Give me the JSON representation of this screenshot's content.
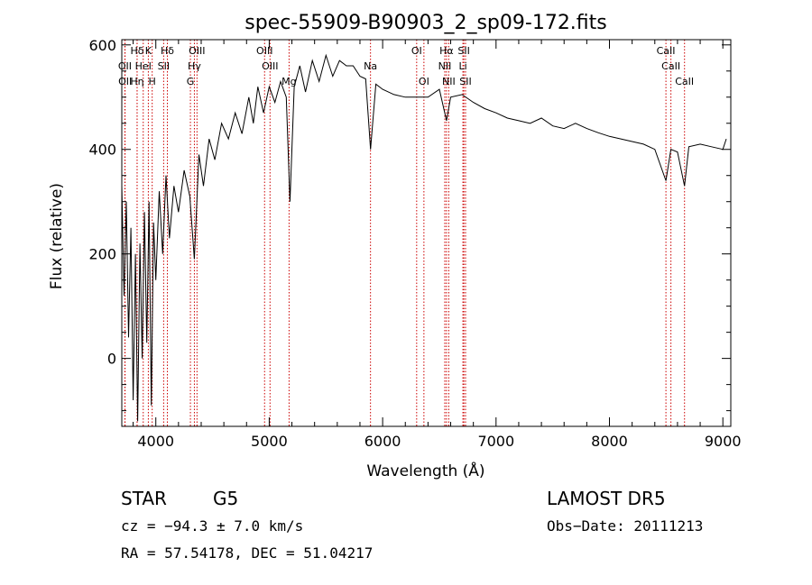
{
  "chart_data": {
    "type": "line",
    "title": "spec-55909-B90903_2_sp09-172.fits",
    "xlabel": "Wavelength (Å)",
    "ylabel": "Flux (relative)",
    "xlim": [
      3700,
      9070
    ],
    "ylim": [
      -130,
      610
    ],
    "xticks": [
      4000,
      5000,
      6000,
      7000,
      8000,
      9000
    ],
    "yticks": [
      0,
      200,
      400,
      600
    ],
    "grid": false,
    "line_color": "#000000",
    "marker_color": "#cc0000",
    "spectrum": {
      "x": [
        3700,
        3720,
        3740,
        3760,
        3780,
        3800,
        3820,
        3840,
        3860,
        3880,
        3900,
        3920,
        3940,
        3960,
        3980,
        4000,
        4030,
        4060,
        4090,
        4120,
        4160,
        4200,
        4250,
        4300,
        4340,
        4380,
        4420,
        4470,
        4520,
        4580,
        4640,
        4700,
        4760,
        4820,
        4860,
        4900,
        4950,
        5000,
        5050,
        5100,
        5150,
        5183,
        5220,
        5270,
        5320,
        5380,
        5440,
        5500,
        5560,
        5620,
        5680,
        5740,
        5800,
        5850,
        5893,
        5940,
        6000,
        6100,
        6200,
        6300,
        6400,
        6500,
        6563,
        6600,
        6700,
        6800,
        6900,
        7000,
        7100,
        7200,
        7300,
        7400,
        7500,
        7600,
        7700,
        7800,
        7900,
        8000,
        8100,
        8200,
        8300,
        8400,
        8498,
        8542,
        8600,
        8662,
        8700,
        8800,
        8900,
        9000,
        9030
      ],
      "y": [
        330,
        120,
        300,
        40,
        250,
        -80,
        200,
        -120,
        220,
        0,
        280,
        30,
        300,
        -90,
        260,
        150,
        320,
        200,
        350,
        230,
        330,
        280,
        360,
        310,
        190,
        390,
        330,
        420,
        380,
        450,
        420,
        470,
        430,
        500,
        450,
        520,
        470,
        520,
        490,
        530,
        500,
        300,
        520,
        560,
        510,
        570,
        530,
        580,
        540,
        570,
        560,
        560,
        540,
        535,
        400,
        525,
        515,
        505,
        500,
        500,
        500,
        515,
        455,
        500,
        505,
        490,
        478,
        470,
        460,
        455,
        450,
        460,
        445,
        440,
        450,
        440,
        432,
        425,
        420,
        415,
        410,
        400,
        340,
        400,
        395,
        330,
        405,
        410,
        405,
        400,
        420
      ]
    },
    "line_markers": [
      {
        "label": "Hδ",
        "x": 3835,
        "row": 0
      },
      {
        "label": "K",
        "x": 3934,
        "row": 0
      },
      {
        "label": "Hδ",
        "x": 4102,
        "row": 0
      },
      {
        "label": "OIII",
        "x": 4363,
        "row": 0
      },
      {
        "label": "OIII",
        "x": 4959,
        "row": 0
      },
      {
        "label": "OI",
        "x": 6300,
        "row": 0
      },
      {
        "label": "Hα",
        "x": 6563,
        "row": 0
      },
      {
        "label": "SII",
        "x": 6716,
        "row": 0
      },
      {
        "label": "CaII",
        "x": 8498,
        "row": 0
      },
      {
        "label": "OII",
        "x": 3727,
        "row": 1
      },
      {
        "label": "HeI",
        "x": 3889,
        "row": 1
      },
      {
        "label": "SII",
        "x": 4069,
        "row": 1
      },
      {
        "label": "Hγ",
        "x": 4340,
        "row": 1
      },
      {
        "label": "OIII",
        "x": 5007,
        "row": 1
      },
      {
        "label": "Na",
        "x": 5893,
        "row": 1
      },
      {
        "label": "NII",
        "x": 6548,
        "row": 1
      },
      {
        "label": "Li",
        "x": 6708,
        "row": 1
      },
      {
        "label": "CaII",
        "x": 8542,
        "row": 1
      },
      {
        "label": "OII",
        "x": 3729,
        "row": 2
      },
      {
        "label": "Hη",
        "x": 3835,
        "row": 2
      },
      {
        "label": "H",
        "x": 3968,
        "row": 2
      },
      {
        "label": "G",
        "x": 4305,
        "row": 2
      },
      {
        "label": "Mg",
        "x": 5175,
        "row": 2
      },
      {
        "label": "OI",
        "x": 6364,
        "row": 2
      },
      {
        "label": "NII",
        "x": 6583,
        "row": 2
      },
      {
        "label": "SII",
        "x": 6731,
        "row": 2
      },
      {
        "label": "CaII",
        "x": 8662,
        "row": 2
      }
    ]
  },
  "info": {
    "object_class": "STAR",
    "subclass": "G5",
    "survey": "LAMOST DR5",
    "cz": "cz = −94.3 ± 7.0 km/s",
    "obs_date": "Obs−Date: 20111213",
    "coords": "RA =  57.54178, DEC =  51.04217"
  }
}
